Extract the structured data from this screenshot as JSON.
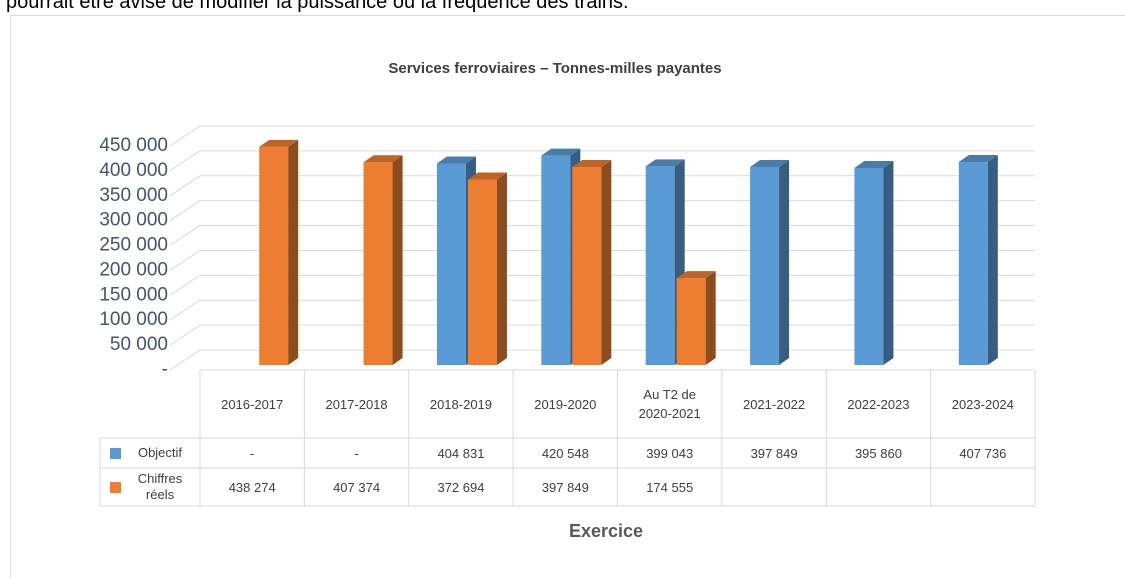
{
  "page_text": "pourrait être avisé de modifier la puissance ou la fréquence des trains.",
  "chart_data": {
    "type": "bar3d",
    "title": "Services ferroviaires – Tonnes-milles payantes",
    "x_label": "Exercice",
    "categories": [
      "2016-2017",
      "2017-2018",
      "2018-2019",
      "2019-2020",
      "Au T2 de 2020-2021",
      "2021-2022",
      "2022-2023",
      "2023-2024"
    ],
    "series": [
      {
        "name": "Objectif",
        "color": "#5b9bd5",
        "values": [
          null,
          null,
          404831,
          420548,
          399043,
          397849,
          395860,
          407736
        ],
        "value_labels": [
          "-",
          "-",
          "404 831",
          "420 548",
          "399 043",
          "397 849",
          "395 860",
          "407 736"
        ]
      },
      {
        "name": "Chiffres réels",
        "color": "#ed7d31",
        "values": [
          438274,
          407374,
          372694,
          397849,
          174555,
          null,
          null,
          null
        ],
        "value_labels": [
          "438 274",
          "407 374",
          "372 694",
          "397 849",
          "174 555",
          null,
          null,
          null
        ]
      }
    ],
    "ylim": [
      0,
      450000
    ],
    "yticks": [
      {
        "value": 0,
        "label": "-"
      },
      {
        "value": 50000,
        "label": "50 000"
      },
      {
        "value": 100000,
        "label": "100 000"
      },
      {
        "value": 150000,
        "label": "150 000"
      },
      {
        "value": 200000,
        "label": "200 000"
      },
      {
        "value": 250000,
        "label": "250 000"
      },
      {
        "value": 300000,
        "label": "300 000"
      },
      {
        "value": 350000,
        "label": "350 000"
      },
      {
        "value": 400000,
        "label": "400 000"
      },
      {
        "value": 450000,
        "label": "450 000"
      }
    ],
    "grid": true,
    "legend": "table"
  }
}
